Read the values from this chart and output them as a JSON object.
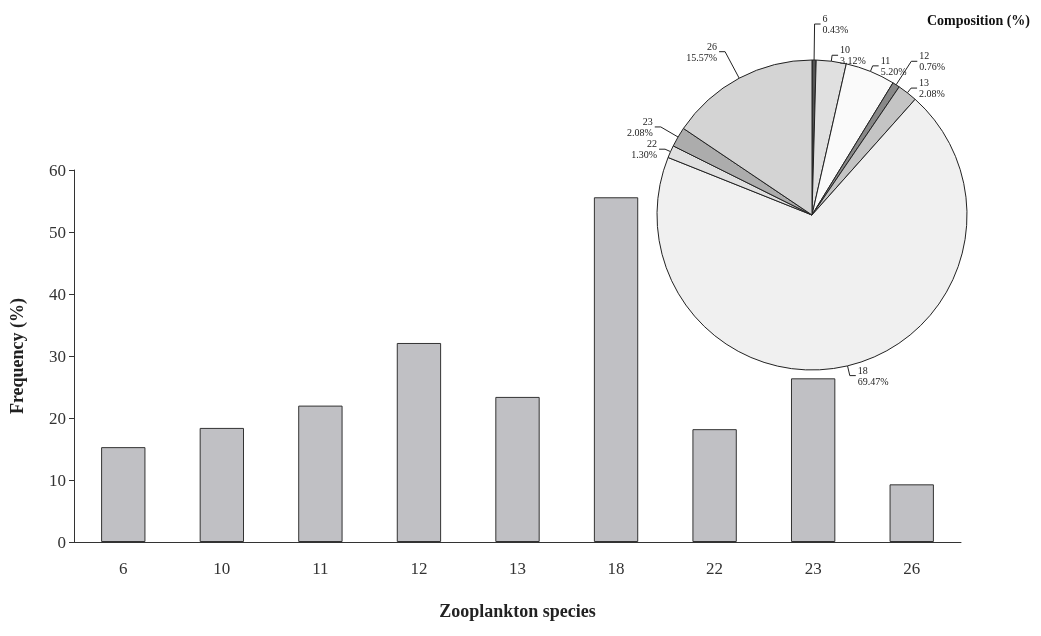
{
  "chart_data": [
    {
      "type": "bar",
      "xlabel": "Zooplankton species",
      "ylabel": "Frequency (%)",
      "categories": [
        "6",
        "10",
        "11",
        "12",
        "13",
        "18",
        "22",
        "23",
        "26"
      ],
      "values": [
        15.3,
        18.4,
        22.0,
        32.1,
        23.4,
        55.6,
        18.2,
        26.4,
        9.3
      ],
      "color": "#c0c0c4",
      "ylim": [
        0,
        60
      ],
      "yticks": [
        0,
        10,
        20,
        30,
        40,
        50,
        60
      ]
    },
    {
      "type": "pie",
      "title": "Composition (%)",
      "categories": [
        "6",
        "10",
        "11",
        "12",
        "13",
        "18",
        "22",
        "23",
        "26"
      ],
      "values": [
        0.43,
        3.12,
        5.2,
        0.76,
        2.08,
        69.47,
        1.3,
        2.08,
        15.57
      ],
      "value_labels": [
        "0.43%",
        "3.12%",
        "5.20%",
        "0.76%",
        "2.08%",
        "69.47%",
        "1.30%",
        "2.08%",
        "15.57%"
      ],
      "colors": [
        "#555555",
        "#e0e0e0",
        "#fafafa",
        "#888888",
        "#c4c4c4",
        "#f0f0f0",
        "#e0e0e0",
        "#acacac",
        "#d4d4d4"
      ]
    }
  ]
}
